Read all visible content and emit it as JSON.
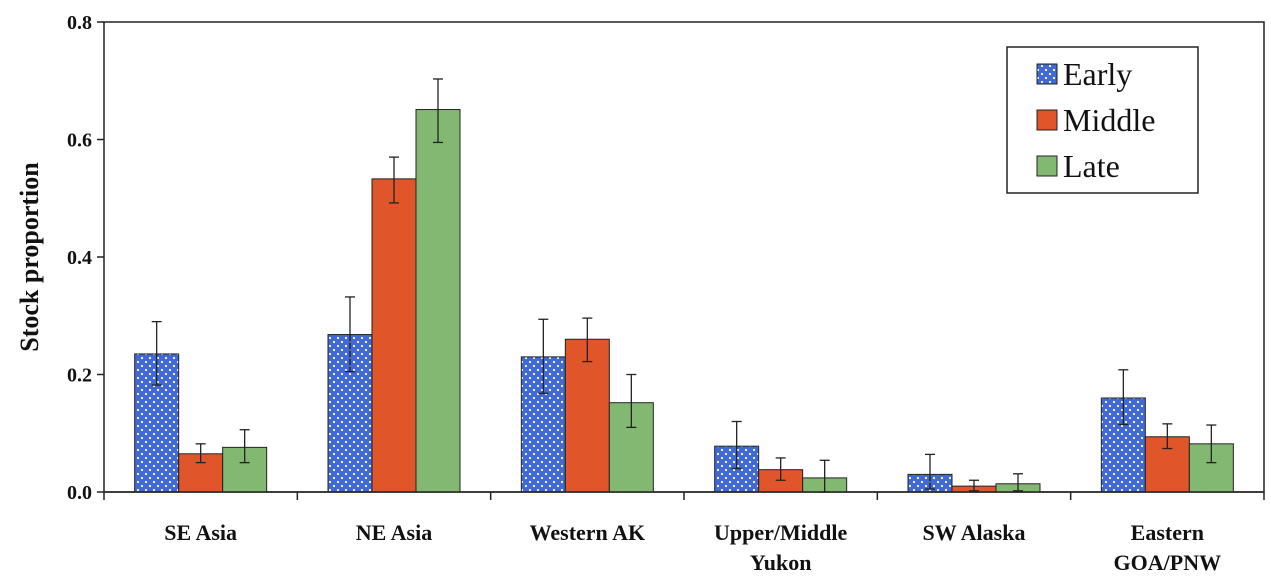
{
  "chart_data": {
    "type": "bar",
    "title": "",
    "xlabel": "",
    "ylabel": "Stock proportion",
    "ylim": [
      0,
      0.8
    ],
    "yticks": [
      "0.0",
      "0.2",
      "0.4",
      "0.6",
      "0.8"
    ],
    "grid": false,
    "legend_position": "top-right",
    "categories": [
      [
        "SE Asia"
      ],
      [
        "NE Asia"
      ],
      [
        "Western AK"
      ],
      [
        "Upper/Middle",
        "Yukon"
      ],
      [
        "SW Alaska"
      ],
      [
        "Eastern",
        "GOA/PNW"
      ]
    ],
    "series": [
      {
        "name": "Early",
        "color": "#4169d6",
        "pattern": "white-dots",
        "values": [
          0.235,
          0.268,
          0.23,
          0.078,
          0.03,
          0.16
        ],
        "error_low": [
          0.182,
          0.205,
          0.168,
          0.04,
          0.005,
          0.115
        ],
        "error_high": [
          0.29,
          0.332,
          0.294,
          0.12,
          0.064,
          0.208
        ]
      },
      {
        "name": "Middle",
        "color": "#e0562a",
        "pattern": "solid",
        "values": [
          0.065,
          0.533,
          0.26,
          0.038,
          0.01,
          0.094
        ],
        "error_low": [
          0.05,
          0.492,
          0.222,
          0.02,
          0.002,
          0.074
        ],
        "error_high": [
          0.082,
          0.57,
          0.296,
          0.058,
          0.02,
          0.116
        ]
      },
      {
        "name": "Late",
        "color": "#83b873",
        "pattern": "solid",
        "values": [
          0.076,
          0.651,
          0.152,
          0.024,
          0.014,
          0.082
        ],
        "error_low": [
          0.05,
          0.595,
          0.11,
          0.0,
          0.002,
          0.05
        ],
        "error_high": [
          0.106,
          0.703,
          0.2,
          0.054,
          0.031,
          0.114
        ]
      }
    ]
  }
}
